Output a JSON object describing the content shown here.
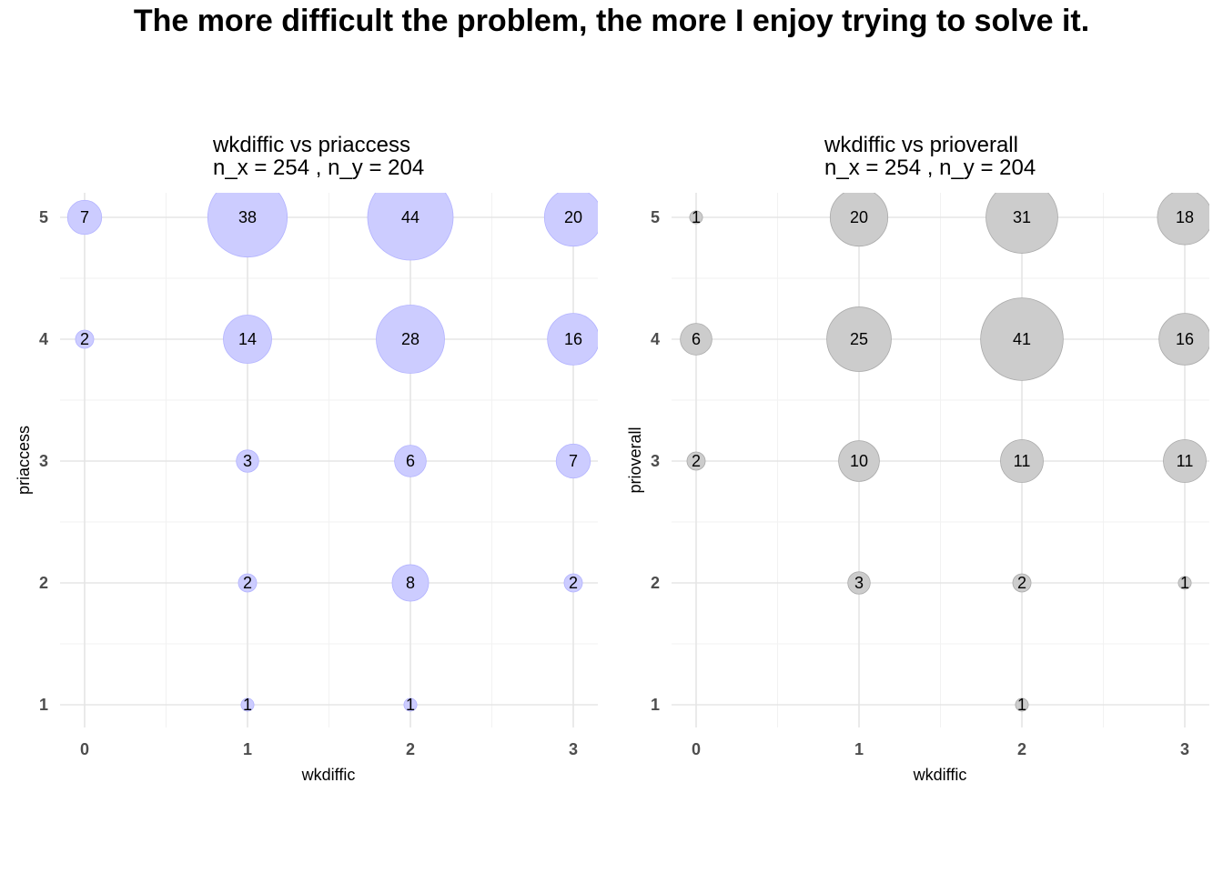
{
  "figure": {
    "title": "The more difficult the problem, the more I enjoy trying to solve it."
  },
  "chart_data": [
    {
      "type": "scatter",
      "title": "wkdiffic vs priaccess",
      "subtitle": "n_x = 254 , n_y = 204",
      "xlabel": "wkdiffic",
      "ylabel": "priaccess",
      "x_ticks": [
        0,
        1,
        2,
        3
      ],
      "y_ticks": [
        1,
        2,
        3,
        4,
        5
      ],
      "xlim": [
        -0.15,
        3.15
      ],
      "ylim": [
        0.8,
        5.2
      ],
      "grid": true,
      "color": "#ccccff",
      "stroke": "#b3b3ff",
      "points": [
        {
          "x": 0,
          "y": 5,
          "n": 7
        },
        {
          "x": 1,
          "y": 5,
          "n": 38
        },
        {
          "x": 2,
          "y": 5,
          "n": 44
        },
        {
          "x": 3,
          "y": 5,
          "n": 20
        },
        {
          "x": 0,
          "y": 4,
          "n": 2
        },
        {
          "x": 1,
          "y": 4,
          "n": 14
        },
        {
          "x": 2,
          "y": 4,
          "n": 28
        },
        {
          "x": 3,
          "y": 4,
          "n": 16
        },
        {
          "x": 1,
          "y": 3,
          "n": 3
        },
        {
          "x": 2,
          "y": 3,
          "n": 6
        },
        {
          "x": 3,
          "y": 3,
          "n": 7
        },
        {
          "x": 1,
          "y": 2,
          "n": 2
        },
        {
          "x": 2,
          "y": 2,
          "n": 8
        },
        {
          "x": 3,
          "y": 2,
          "n": 2
        },
        {
          "x": 1,
          "y": 1,
          "n": 1
        },
        {
          "x": 2,
          "y": 1,
          "n": 1
        }
      ]
    },
    {
      "type": "scatter",
      "title": "wkdiffic vs prioverall",
      "subtitle": "n_x = 254 , n_y = 204",
      "xlabel": "wkdiffic",
      "ylabel": "prioverall",
      "x_ticks": [
        0,
        1,
        2,
        3
      ],
      "y_ticks": [
        1,
        2,
        3,
        4,
        5
      ],
      "xlim": [
        -0.15,
        3.15
      ],
      "ylim": [
        0.8,
        5.2
      ],
      "grid": true,
      "color": "#cccccc",
      "stroke": "#aaaaaa",
      "points": [
        {
          "x": 0,
          "y": 5,
          "n": 1
        },
        {
          "x": 1,
          "y": 5,
          "n": 20
        },
        {
          "x": 2,
          "y": 5,
          "n": 31
        },
        {
          "x": 3,
          "y": 5,
          "n": 18
        },
        {
          "x": 0,
          "y": 4,
          "n": 6
        },
        {
          "x": 1,
          "y": 4,
          "n": 25
        },
        {
          "x": 2,
          "y": 4,
          "n": 41
        },
        {
          "x": 3,
          "y": 4,
          "n": 16
        },
        {
          "x": 0,
          "y": 3,
          "n": 2
        },
        {
          "x": 1,
          "y": 3,
          "n": 10
        },
        {
          "x": 2,
          "y": 3,
          "n": 11
        },
        {
          "x": 3,
          "y": 3,
          "n": 11
        },
        {
          "x": 1,
          "y": 2,
          "n": 3
        },
        {
          "x": 2,
          "y": 2,
          "n": 2
        },
        {
          "x": 3,
          "y": 2,
          "n": 1
        },
        {
          "x": 2,
          "y": 1,
          "n": 1
        }
      ]
    }
  ]
}
